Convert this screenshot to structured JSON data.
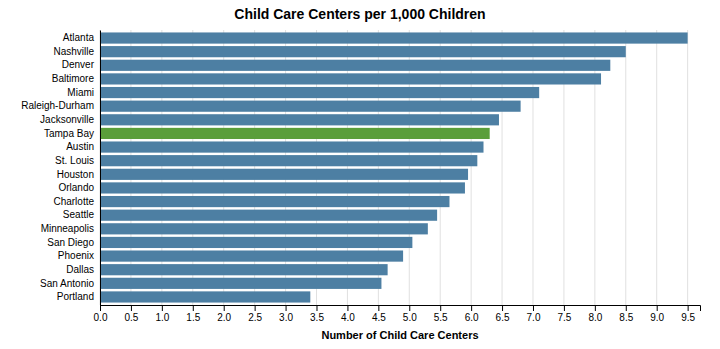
{
  "chart_data": {
    "type": "bar",
    "orientation": "horizontal",
    "title": "Child Care Centers per 1,000 Children",
    "xlabel": "Number of Child Care Centers",
    "categories": [
      "Atlanta",
      "Nashville",
      "Denver",
      "Baltimore",
      "Miami",
      "Raleigh-Durham",
      "Jacksonville",
      "Tampa Bay",
      "Austin",
      "St. Louis",
      "Houston",
      "Orlando",
      "Charlotte",
      "Seattle",
      "Minneapolis",
      "San Diego",
      "Phoenix",
      "Dallas",
      "San Antonio",
      "Portland"
    ],
    "values": [
      9.5,
      8.5,
      8.25,
      8.1,
      7.1,
      6.8,
      6.45,
      6.3,
      6.2,
      6.1,
      5.95,
      5.9,
      5.65,
      5.45,
      5.3,
      5.05,
      4.9,
      4.65,
      4.55,
      3.4
    ],
    "colors": [
      "#4d7fa3",
      "#4d7fa3",
      "#4d7fa3",
      "#4d7fa3",
      "#4d7fa3",
      "#4d7fa3",
      "#4d7fa3",
      "#5a9e3a",
      "#4d7fa3",
      "#4d7fa3",
      "#4d7fa3",
      "#4d7fa3",
      "#4d7fa3",
      "#4d7fa3",
      "#4d7fa3",
      "#4d7fa3",
      "#4d7fa3",
      "#4d7fa3",
      "#4d7fa3",
      "#4d7fa3"
    ],
    "xlim": [
      0,
      9.7
    ],
    "xticks": [
      {
        "value": 0.0,
        "label": "0.0"
      },
      0.5,
      {
        "value": 1.0,
        "label": "1.0"
      },
      1.5,
      {
        "value": 2.0,
        "label": "2.0"
      },
      2.5,
      {
        "value": 3.0,
        "label": "3.0"
      },
      3.5,
      {
        "value": 4.0,
        "label": "4.0"
      },
      4.5,
      {
        "value": 5.0,
        "label": "5.0"
      },
      5.5,
      {
        "value": 6.0,
        "label": "6.0"
      },
      6.5,
      {
        "value": 7.0,
        "label": "7.0"
      },
      7.5,
      {
        "value": 8.0,
        "label": "8.0"
      },
      8.5,
      {
        "value": 9.0,
        "label": "9.0"
      },
      9.5
    ],
    "grid": true
  }
}
